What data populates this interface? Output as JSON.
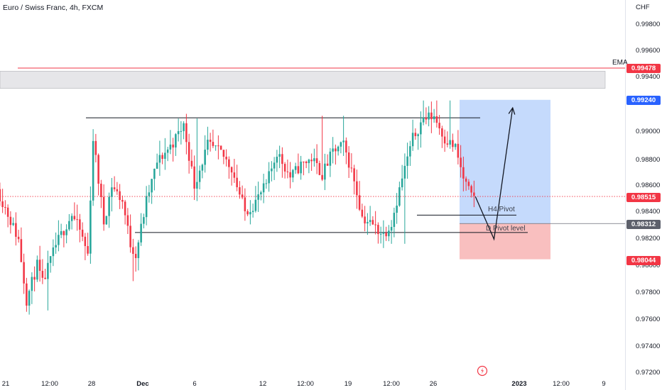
{
  "header": {
    "symbol_title": "Euro / Swiss Franc, 4h, FXCM"
  },
  "price_axis": {
    "currency": "CHF",
    "ticks": [
      "0.99800",
      "0.99600",
      "0.99400",
      "0.99200",
      "0.99000",
      "0.98800",
      "0.98600",
      "0.98400",
      "0.98200",
      "0.98000",
      "0.97800",
      "0.97600",
      "0.97400",
      "0.97200"
    ]
  },
  "time_axis": {
    "ticks": [
      "21",
      "12:00",
      "28",
      "Dec",
      "6",
      "12",
      "12:00",
      "19",
      "12:00",
      "26",
      "2023",
      "12:00",
      "9"
    ]
  },
  "price_badges": [
    {
      "label": "0.99478",
      "color": "#f23645",
      "price": 0.99478
    },
    {
      "label": "0.99240",
      "color": "#2962ff",
      "price": 0.9924
    },
    {
      "label": "0.98515",
      "color": "#f23645",
      "price": 0.98515
    },
    {
      "label": "0.98312",
      "color": "#5d606b",
      "price": 0.98312
    },
    {
      "label": "0.98044",
      "color": "#f23645",
      "price": 0.98044
    }
  ],
  "annotations": {
    "ema_label": "EMA",
    "h4_pivot_label": "H4 Pivot",
    "daily_pivot_label": "D Pivot level"
  },
  "colors": {
    "up": "#26a69a",
    "down": "#f23645",
    "ema_line": "#f23645",
    "target_zone": "#bbd3fb",
    "stop_zone": "#f8b8b8",
    "supply_zone": "#e6e6e9",
    "tv_logo": "#f23645"
  },
  "chart_data": {
    "type": "candlestick",
    "title": "Euro / Swiss Franc, 4h, FXCM",
    "ylabel": "CHF",
    "ylim": [
      0.9716,
      0.9998
    ],
    "current_price": 0.98515,
    "ema_level": 0.99478,
    "levels": {
      "range_high": 0.99105,
      "range_low": 0.98245,
      "h4_pivot": 0.98375,
      "daily_pivot": 0.98235,
      "supply_zone": [
        0.99326,
        0.99455
      ]
    },
    "position": {
      "entry": 0.98312,
      "target": 0.9924,
      "stop": 0.98044
    },
    "projection": [
      {
        "bar": 179,
        "price": 0.98515
      },
      {
        "bar": 186,
        "price": 0.98195
      },
      {
        "bar": 193,
        "price": 0.9918
      }
    ],
    "candle_extremes": {
      "low": 0.9765,
      "high": 0.99235
    }
  }
}
